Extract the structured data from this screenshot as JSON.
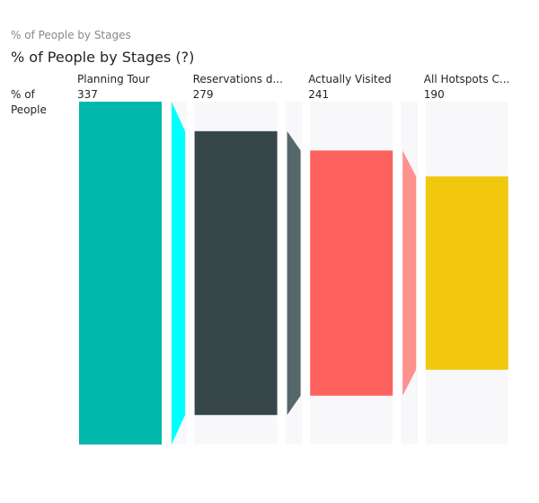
{
  "header": {
    "visual_name": "% of People by Stages"
  },
  "chart_data": {
    "type": "bar",
    "title": "% of People by Stages (?)",
    "y_caption": "% of People",
    "categories": [
      "Planning Tour",
      "Reservations d...",
      "Actually Visited",
      "All Hotspots C..."
    ],
    "values": [
      337,
      279,
      241,
      190
    ],
    "value_labels": [
      "337",
      "279",
      "241",
      "190"
    ],
    "colors": {
      "bars": [
        "#01B8AA",
        "#374649",
        "#FD625E",
        "#F2C80F"
      ],
      "connectors": [
        "#00FFFF",
        "#56676B",
        "#FF918E"
      ],
      "track": "#F8F8FA"
    }
  }
}
